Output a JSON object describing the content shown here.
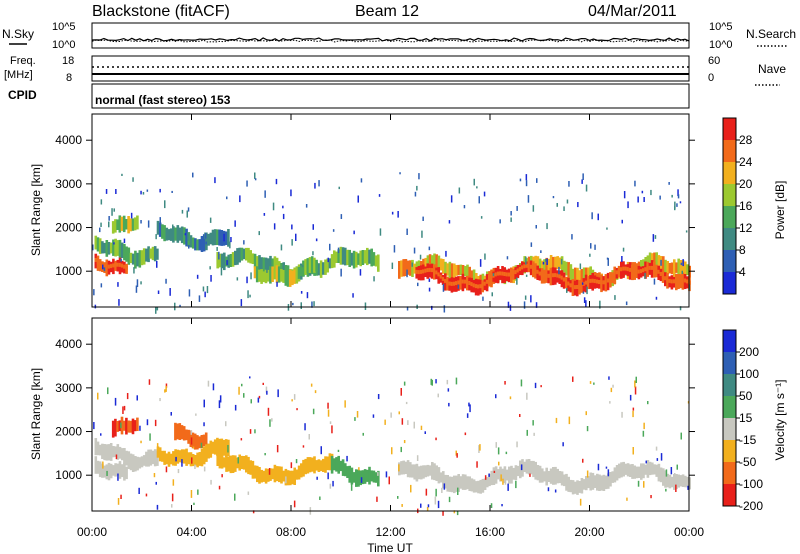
{
  "header": {
    "title": "Blackstone (fitACF)",
    "beam": "Beam 12",
    "date": "04/Mar/2011"
  },
  "top_panels": {
    "nsky_label": "N.Sky",
    "nsky_ticks": [
      "10^5",
      "10^0"
    ],
    "nsearch_label": "N.Search",
    "nsearch_ticks": [
      "10^5",
      "10^0"
    ],
    "freq_label_1": "Freq.",
    "freq_label_2": "[MHz]",
    "freq_ticks": [
      "18",
      "8"
    ],
    "nave_label": "Nave",
    "nave_ticks": [
      "60",
      "0"
    ],
    "cpid_label": "CPID",
    "cpid_value": "normal (fast stereo) 153"
  },
  "chart_data": [
    {
      "type": "heatmap",
      "name": "power",
      "ylabel": "Slant Range [km]",
      "ylim": [
        180,
        4600
      ],
      "yticks": [
        "1000",
        "2000",
        "3000",
        "4000"
      ],
      "colorbar_label": "Power [dB]",
      "colorbar_ticks": [
        "4",
        "8",
        "12",
        "16",
        "20",
        "24",
        "28"
      ],
      "colorbar_colors": [
        "#1a2ad6",
        "#2e5fb4",
        "#3f8a82",
        "#4ba85a",
        "#9cc930",
        "#f2b01e",
        "#f26a1a",
        "#e8201a"
      ],
      "bands": [
        {
          "t_start": 0.1,
          "t_end": 2.6,
          "range_km": 1500,
          "power_db": 12
        },
        {
          "t_start": 0.1,
          "t_end": 1.4,
          "range_km": 1230,
          "power_db": 28
        },
        {
          "t_start": 0.8,
          "t_end": 1.8,
          "range_km": 2150,
          "power_db": 14
        },
        {
          "t_start": 2.6,
          "t_end": 5.5,
          "range_km": 1850,
          "power_db": 6
        },
        {
          "t_start": 5.0,
          "t_end": 11.5,
          "range_km": 1150,
          "power_db": 10
        },
        {
          "t_start": 6.5,
          "t_end": 9.0,
          "range_km": 1050,
          "power_db": 16
        },
        {
          "t_start": 12.3,
          "t_end": 24.0,
          "range_km": 1000,
          "power_db": 18
        },
        {
          "t_start": 13.0,
          "t_end": 24.0,
          "range_km": 850,
          "power_db": 28
        }
      ]
    },
    {
      "type": "heatmap",
      "name": "velocity",
      "xlabel": "Time UT",
      "ylabel": "Slant Range [km]",
      "ylim": [
        180,
        4600
      ],
      "yticks": [
        "1000",
        "2000",
        "3000",
        "4000"
      ],
      "xticks": [
        "00:00",
        "04:00",
        "08:00",
        "12:00",
        "16:00",
        "20:00",
        "00:00"
      ],
      "colorbar_label": "Velocity [m s⁻¹]",
      "colorbar_ticks": [
        "200",
        "100",
        "50",
        "15",
        "-15",
        "-50",
        "-100",
        "-200"
      ],
      "colorbar_colors": [
        "#1a2ad6",
        "#2e5fb4",
        "#3f8a82",
        "#4ba85a",
        "#c8c8c0",
        "#f2b01e",
        "#f26a1a",
        "#e8201a"
      ],
      "bands": [
        {
          "t_start": 0.1,
          "t_end": 2.6,
          "range_km": 1500,
          "velocity": 0
        },
        {
          "t_start": 0.1,
          "t_end": 1.4,
          "range_km": 1230,
          "velocity": 0
        },
        {
          "t_start": 0.8,
          "t_end": 1.8,
          "range_km": 2200,
          "velocity": -150
        },
        {
          "t_start": 3.3,
          "t_end": 4.6,
          "range_km": 2000,
          "velocity": -100
        },
        {
          "t_start": 2.6,
          "t_end": 5.5,
          "range_km": 1550,
          "velocity": -60
        },
        {
          "t_start": 5.0,
          "t_end": 9.6,
          "range_km": 1150,
          "velocity": -50
        },
        {
          "t_start": 9.6,
          "t_end": 11.5,
          "range_km": 1100,
          "velocity": 40
        },
        {
          "t_start": 12.3,
          "t_end": 24.0,
          "range_km": 950,
          "velocity": 0
        }
      ]
    }
  ]
}
